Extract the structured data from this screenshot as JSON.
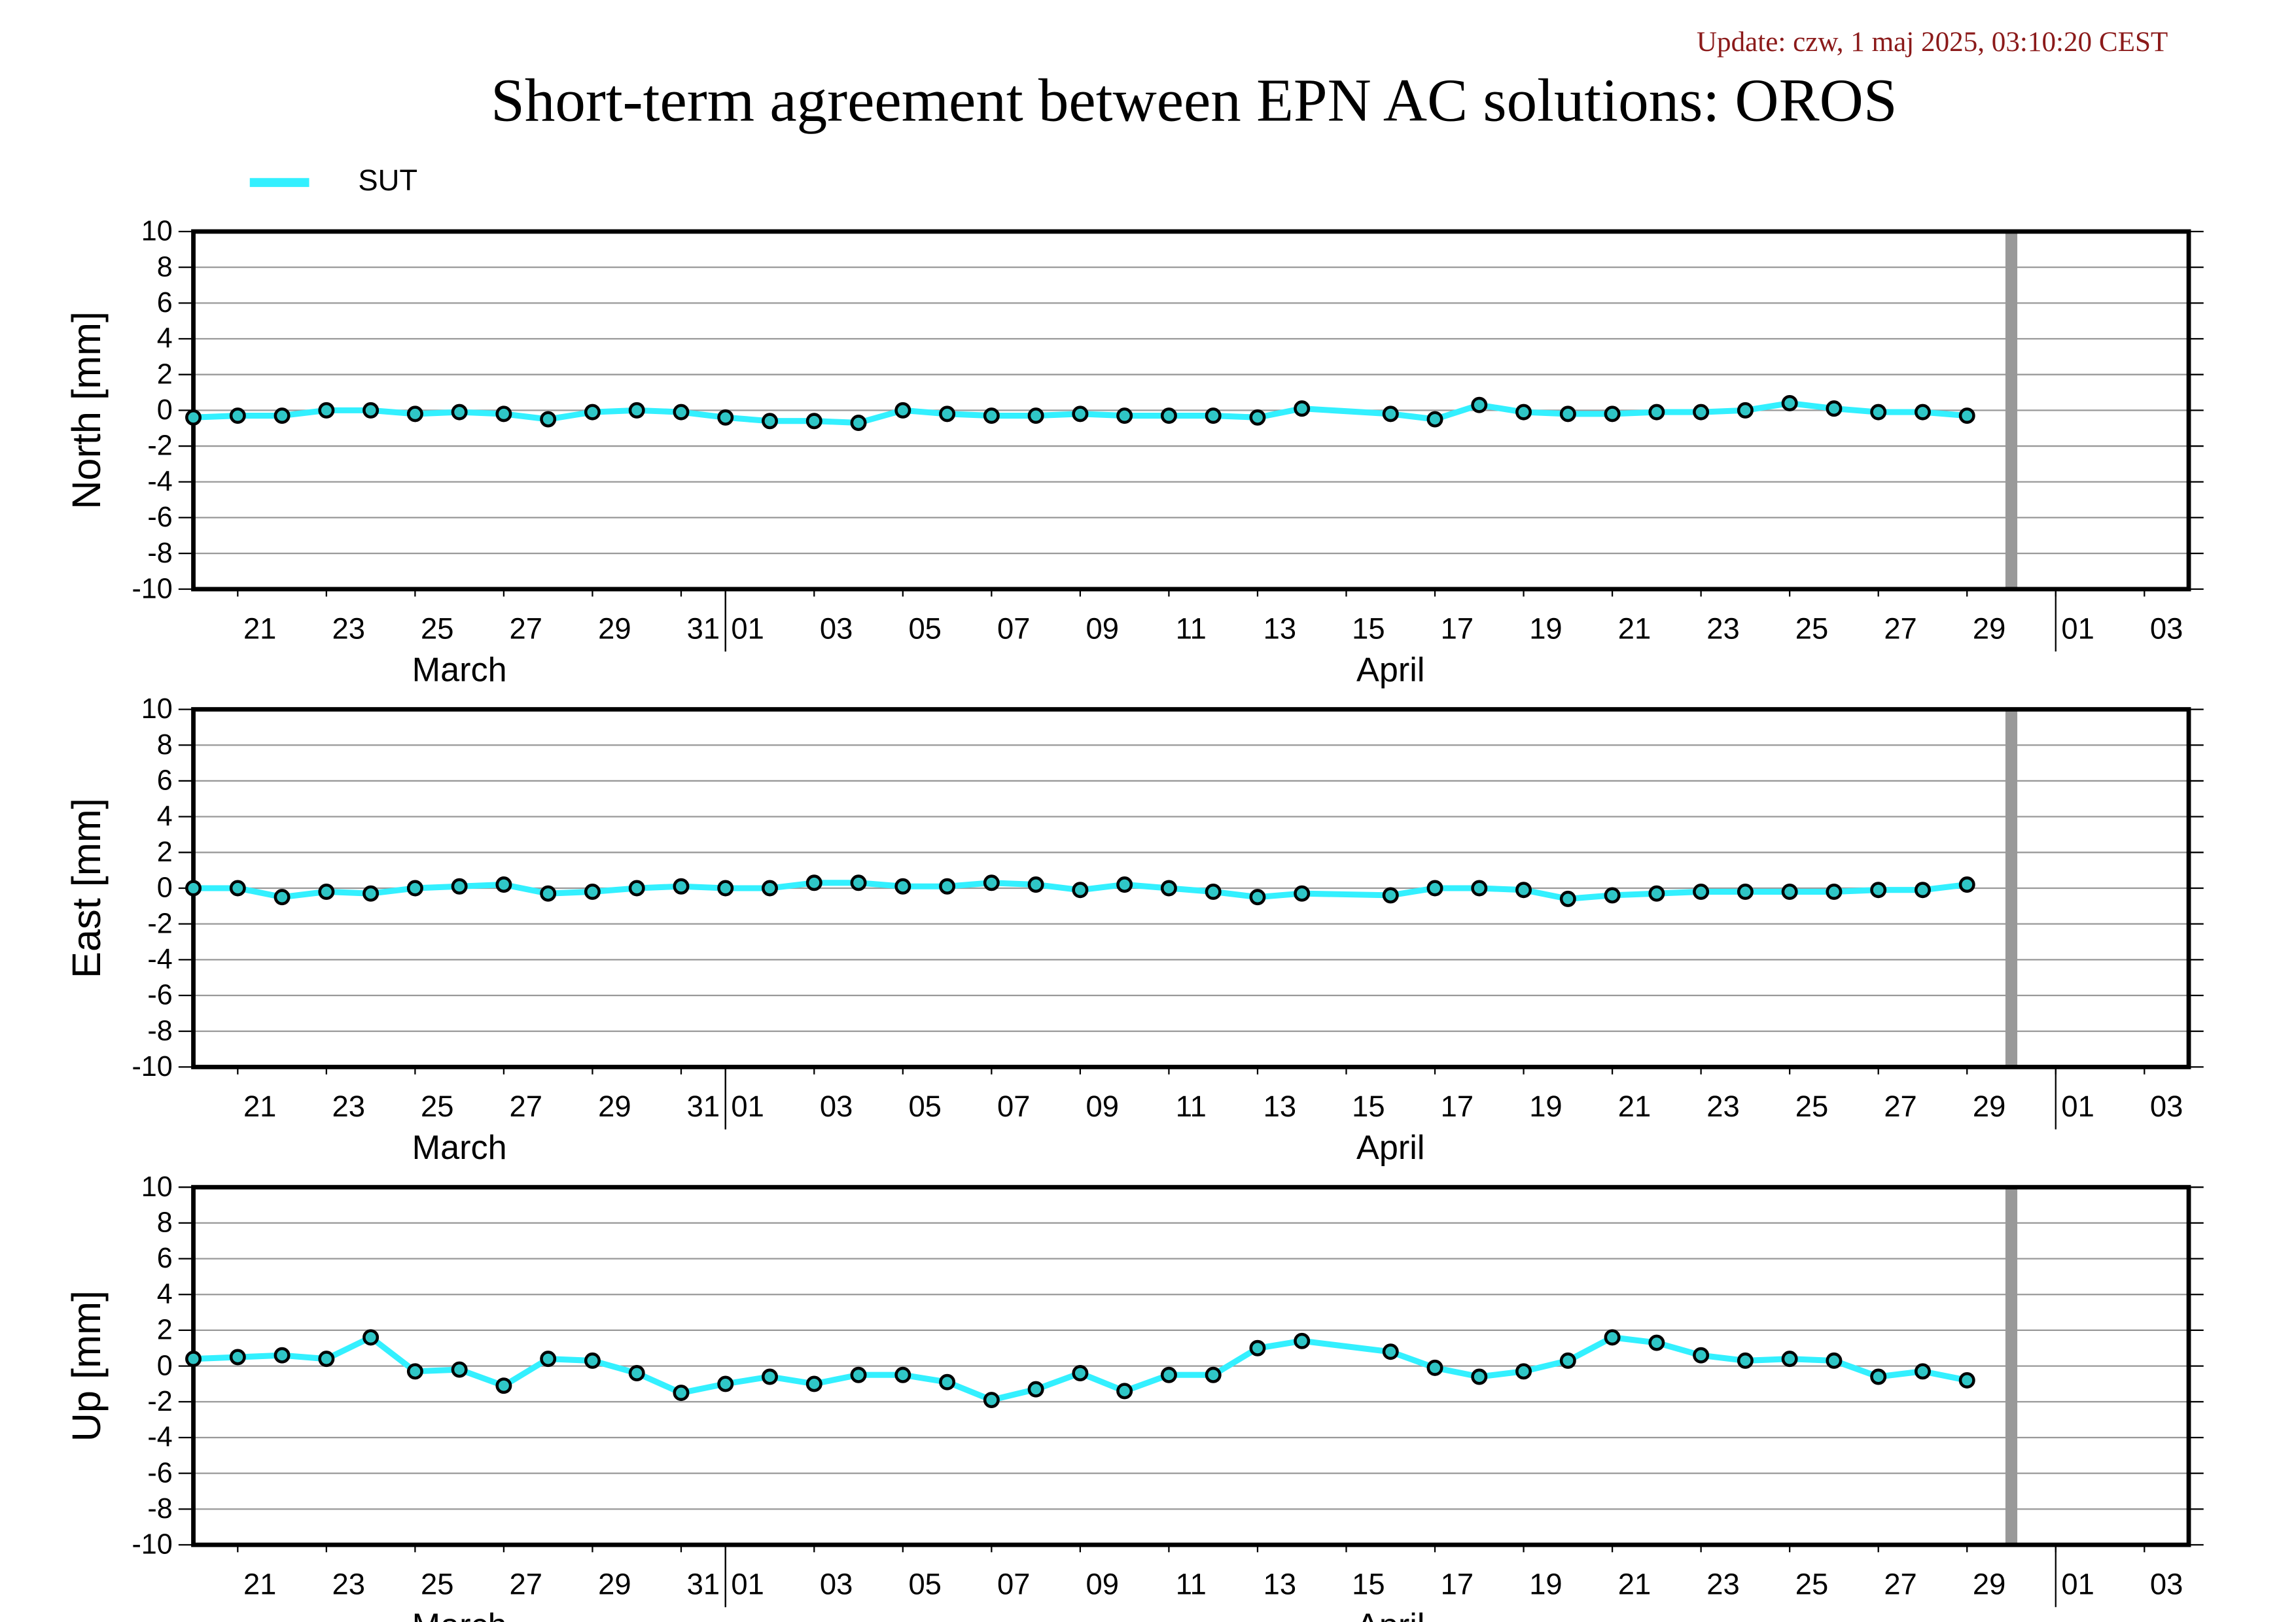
{
  "chart_data": {
    "update": "Update: czw, 1 maj 2025, 03:10:20 CEST",
    "title": "Short-term agreement between EPN AC solutions: OROS",
    "now_line": {
      "x": "2025-04-30",
      "color": "#999999"
    },
    "charts": [
      {
        "type": "line",
        "ylabel": "North [mm]",
        "x": [
          "2025-03-20",
          "2025-03-21",
          "2025-03-22",
          "2025-03-23",
          "2025-03-24",
          "2025-03-25",
          "2025-03-26",
          "2025-03-27",
          "2025-03-28",
          "2025-03-29",
          "2025-03-30",
          "2025-03-31",
          "2025-04-01",
          "2025-04-02",
          "2025-04-03",
          "2025-04-04",
          "2025-04-05",
          "2025-04-06",
          "2025-04-07",
          "2025-04-08",
          "2025-04-09",
          "2025-04-10",
          "2025-04-11",
          "2025-04-12",
          "2025-04-13",
          "2025-04-14",
          "2025-04-16",
          "2025-04-17",
          "2025-04-18",
          "2025-04-19",
          "2025-04-20",
          "2025-04-21",
          "2025-04-22",
          "2025-04-23",
          "2025-04-24",
          "2025-04-25",
          "2025-04-26",
          "2025-04-27",
          "2025-04-28",
          "2025-04-29"
        ],
        "series": [
          {
            "name": "SUT",
            "color": "#33f0ff",
            "values": [
              -0.4,
              -0.3,
              -0.3,
              0.0,
              0.0,
              -0.2,
              -0.1,
              -0.2,
              -0.5,
              -0.1,
              0.0,
              -0.1,
              -0.4,
              -0.6,
              -0.6,
              -0.7,
              0.0,
              -0.2,
              -0.3,
              -0.3,
              -0.2,
              -0.3,
              -0.3,
              -0.3,
              -0.4,
              0.1,
              -0.2,
              -0.5,
              0.3,
              -0.1,
              -0.2,
              -0.2,
              -0.1,
              -0.1,
              0.0,
              0.4,
              0.1,
              -0.1,
              -0.1,
              -0.3
            ]
          }
        ],
        "xlim": [
          "2025-03-20",
          "2025-05-04"
        ],
        "xticks": [
          {
            "value": "2025-03-21",
            "label": "21"
          },
          {
            "value": "2025-03-23",
            "label": "23"
          },
          {
            "value": "2025-03-25",
            "label": "25"
          },
          {
            "value": "2025-03-27",
            "label": "27"
          },
          {
            "value": "2025-03-29",
            "label": "29"
          },
          {
            "value": "2025-03-31",
            "label": "31"
          },
          {
            "value": "2025-04-01",
            "label": "01"
          },
          {
            "value": "2025-04-03",
            "label": "03"
          },
          {
            "value": "2025-04-05",
            "label": "05"
          },
          {
            "value": "2025-04-07",
            "label": "07"
          },
          {
            "value": "2025-04-09",
            "label": "09"
          },
          {
            "value": "2025-04-11",
            "label": "11"
          },
          {
            "value": "2025-04-13",
            "label": "13"
          },
          {
            "value": "2025-04-15",
            "label": "15"
          },
          {
            "value": "2025-04-17",
            "label": "17"
          },
          {
            "value": "2025-04-19",
            "label": "19"
          },
          {
            "value": "2025-04-21",
            "label": "21"
          },
          {
            "value": "2025-04-23",
            "label": "23"
          },
          {
            "value": "2025-04-25",
            "label": "25"
          },
          {
            "value": "2025-04-27",
            "label": "27"
          },
          {
            "value": "2025-04-29",
            "label": "29"
          },
          {
            "value": "2025-05-01",
            "label": "01"
          },
          {
            "value": "2025-05-03",
            "label": "03"
          }
        ],
        "months": [
          {
            "value": "2025-03",
            "label": "March"
          },
          {
            "value": "2025-04",
            "label": "April"
          }
        ],
        "ylim": [
          -10,
          10
        ],
        "yticks": [
          -10,
          -8,
          -6,
          -4,
          -2,
          0,
          2,
          4,
          6,
          8,
          10
        ],
        "grid": true
      },
      {
        "type": "line",
        "ylabel": "East [mm]",
        "x": [
          "2025-03-20",
          "2025-03-21",
          "2025-03-22",
          "2025-03-23",
          "2025-03-24",
          "2025-03-25",
          "2025-03-26",
          "2025-03-27",
          "2025-03-28",
          "2025-03-29",
          "2025-03-30",
          "2025-03-31",
          "2025-04-01",
          "2025-04-02",
          "2025-04-03",
          "2025-04-04",
          "2025-04-05",
          "2025-04-06",
          "2025-04-07",
          "2025-04-08",
          "2025-04-09",
          "2025-04-10",
          "2025-04-11",
          "2025-04-12",
          "2025-04-13",
          "2025-04-14",
          "2025-04-16",
          "2025-04-17",
          "2025-04-18",
          "2025-04-19",
          "2025-04-20",
          "2025-04-21",
          "2025-04-22",
          "2025-04-23",
          "2025-04-24",
          "2025-04-25",
          "2025-04-26",
          "2025-04-27",
          "2025-04-28",
          "2025-04-29"
        ],
        "series": [
          {
            "name": "SUT",
            "color": "#33f0ff",
            "values": [
              0.0,
              0.0,
              -0.5,
              -0.2,
              -0.3,
              0.0,
              0.1,
              0.2,
              -0.3,
              -0.2,
              0.0,
              0.1,
              0.0,
              0.0,
              0.3,
              0.3,
              0.1,
              0.1,
              0.3,
              0.2,
              -0.1,
              0.2,
              0.0,
              -0.2,
              -0.5,
              -0.3,
              -0.4,
              0.0,
              0.0,
              -0.1,
              -0.6,
              -0.4,
              -0.3,
              -0.2,
              -0.2,
              -0.2,
              -0.2,
              -0.1,
              -0.1,
              0.2
            ]
          }
        ],
        "xlim": [
          "2025-03-20",
          "2025-05-04"
        ],
        "xticks": [
          {
            "value": "2025-03-21",
            "label": "21"
          },
          {
            "value": "2025-03-23",
            "label": "23"
          },
          {
            "value": "2025-03-25",
            "label": "25"
          },
          {
            "value": "2025-03-27",
            "label": "27"
          },
          {
            "value": "2025-03-29",
            "label": "29"
          },
          {
            "value": "2025-03-31",
            "label": "31"
          },
          {
            "value": "2025-04-01",
            "label": "01"
          },
          {
            "value": "2025-04-03",
            "label": "03"
          },
          {
            "value": "2025-04-05",
            "label": "05"
          },
          {
            "value": "2025-04-07",
            "label": "07"
          },
          {
            "value": "2025-04-09",
            "label": "09"
          },
          {
            "value": "2025-04-11",
            "label": "11"
          },
          {
            "value": "2025-04-13",
            "label": "13"
          },
          {
            "value": "2025-04-15",
            "label": "15"
          },
          {
            "value": "2025-04-17",
            "label": "17"
          },
          {
            "value": "2025-04-19",
            "label": "19"
          },
          {
            "value": "2025-04-21",
            "label": "21"
          },
          {
            "value": "2025-04-23",
            "label": "23"
          },
          {
            "value": "2025-04-25",
            "label": "25"
          },
          {
            "value": "2025-04-27",
            "label": "27"
          },
          {
            "value": "2025-04-29",
            "label": "29"
          },
          {
            "value": "2025-05-01",
            "label": "01"
          },
          {
            "value": "2025-05-03",
            "label": "03"
          }
        ],
        "months": [
          {
            "value": "2025-03",
            "label": "March"
          },
          {
            "value": "2025-04",
            "label": "April"
          }
        ],
        "ylim": [
          -10,
          10
        ],
        "yticks": [
          -10,
          -8,
          -6,
          -4,
          -2,
          0,
          2,
          4,
          6,
          8,
          10
        ],
        "grid": true
      },
      {
        "type": "line",
        "ylabel": "Up [mm]",
        "x": [
          "2025-03-20",
          "2025-03-21",
          "2025-03-22",
          "2025-03-23",
          "2025-03-24",
          "2025-03-25",
          "2025-03-26",
          "2025-03-27",
          "2025-03-28",
          "2025-03-29",
          "2025-03-30",
          "2025-03-31",
          "2025-04-01",
          "2025-04-02",
          "2025-04-03",
          "2025-04-04",
          "2025-04-05",
          "2025-04-06",
          "2025-04-07",
          "2025-04-08",
          "2025-04-09",
          "2025-04-10",
          "2025-04-11",
          "2025-04-12",
          "2025-04-13",
          "2025-04-14",
          "2025-04-16",
          "2025-04-17",
          "2025-04-18",
          "2025-04-19",
          "2025-04-20",
          "2025-04-21",
          "2025-04-22",
          "2025-04-23",
          "2025-04-24",
          "2025-04-25",
          "2025-04-26",
          "2025-04-27",
          "2025-04-28",
          "2025-04-29"
        ],
        "series": [
          {
            "name": "SUT",
            "color": "#33f0ff",
            "values": [
              0.4,
              0.5,
              0.6,
              0.4,
              1.6,
              -0.3,
              -0.2,
              -1.1,
              0.4,
              0.3,
              -0.4,
              -1.5,
              -1.0,
              -0.6,
              -1.0,
              -0.5,
              -0.5,
              -0.9,
              -1.9,
              -1.3,
              -0.4,
              -1.4,
              -0.5,
              -0.5,
              1.0,
              1.4,
              0.8,
              -0.1,
              -0.6,
              -0.3,
              0.3,
              1.6,
              1.3,
              0.6,
              0.3,
              0.4,
              0.3,
              -0.6,
              -0.3,
              -0.8
            ]
          }
        ],
        "xlim": [
          "2025-03-20",
          "2025-05-04"
        ],
        "xticks": [
          {
            "value": "2025-03-21",
            "label": "21"
          },
          {
            "value": "2025-03-23",
            "label": "23"
          },
          {
            "value": "2025-03-25",
            "label": "25"
          },
          {
            "value": "2025-03-27",
            "label": "27"
          },
          {
            "value": "2025-03-29",
            "label": "29"
          },
          {
            "value": "2025-03-31",
            "label": "31"
          },
          {
            "value": "2025-04-01",
            "label": "01"
          },
          {
            "value": "2025-04-03",
            "label": "03"
          },
          {
            "value": "2025-04-05",
            "label": "05"
          },
          {
            "value": "2025-04-07",
            "label": "07"
          },
          {
            "value": "2025-04-09",
            "label": "09"
          },
          {
            "value": "2025-04-11",
            "label": "11"
          },
          {
            "value": "2025-04-13",
            "label": "13"
          },
          {
            "value": "2025-04-15",
            "label": "15"
          },
          {
            "value": "2025-04-17",
            "label": "17"
          },
          {
            "value": "2025-04-19",
            "label": "19"
          },
          {
            "value": "2025-04-21",
            "label": "21"
          },
          {
            "value": "2025-04-23",
            "label": "23"
          },
          {
            "value": "2025-04-25",
            "label": "25"
          },
          {
            "value": "2025-04-27",
            "label": "27"
          },
          {
            "value": "2025-04-29",
            "label": "29"
          },
          {
            "value": "2025-05-01",
            "label": "01"
          },
          {
            "value": "2025-05-03",
            "label": "03"
          }
        ],
        "months": [
          {
            "value": "2025-03",
            "label": "March"
          },
          {
            "value": "2025-04",
            "label": "April"
          }
        ],
        "ylim": [
          -10,
          10
        ],
        "yticks": [
          -10,
          -8,
          -6,
          -4,
          -2,
          0,
          2,
          4,
          6,
          8,
          10
        ],
        "grid": true
      }
    ]
  }
}
